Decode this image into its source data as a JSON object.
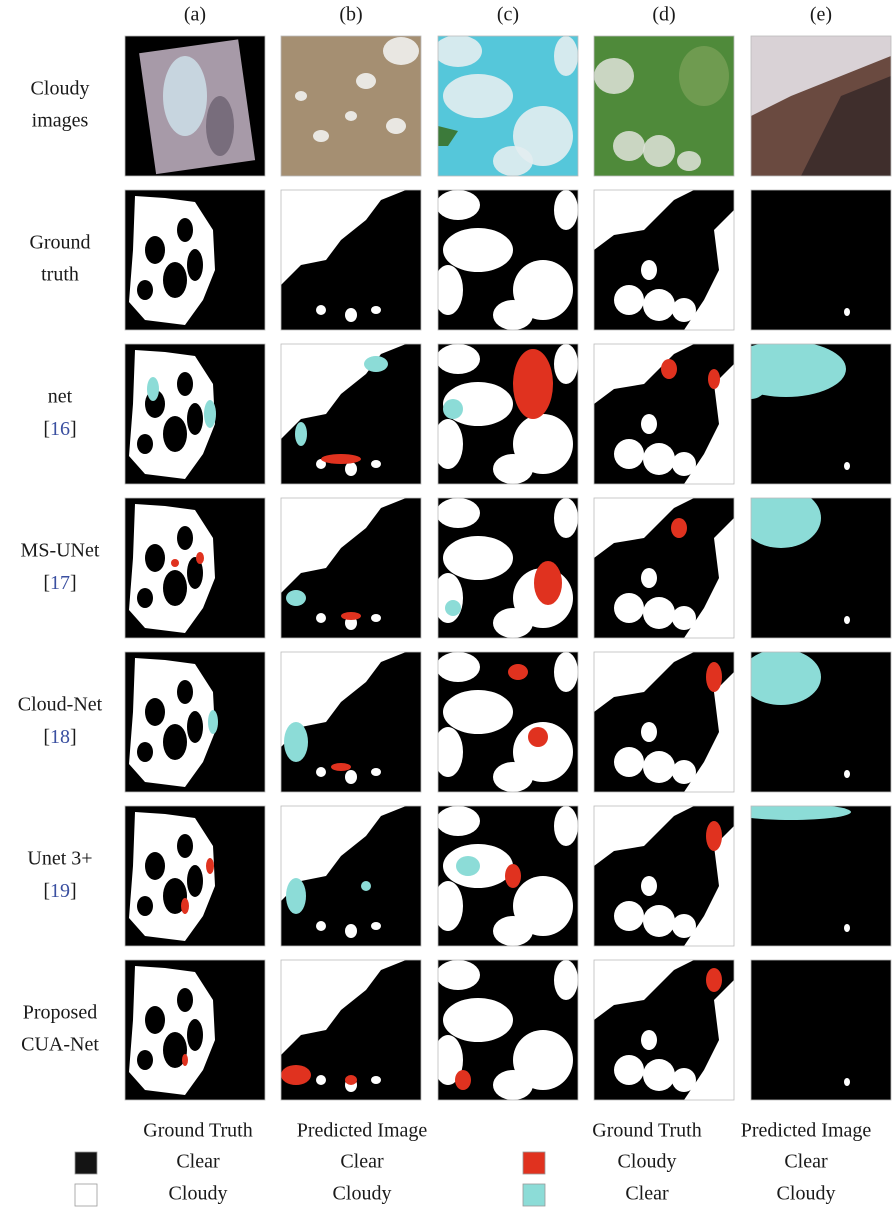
{
  "columns": [
    "(a)",
    "(b)",
    "(c)",
    "(d)",
    "(e)"
  ],
  "rows": [
    {
      "lines": [
        "Cloudy",
        "images"
      ]
    },
    {
      "lines": [
        "Ground",
        "truth"
      ]
    },
    {
      "lines": [
        "net"
      ],
      "citation": [
        "[",
        "16",
        "]"
      ]
    },
    {
      "lines": [
        "MS-UNet"
      ],
      "citation": [
        "[",
        "17",
        "]"
      ]
    },
    {
      "lines": [
        "Cloud-Net"
      ],
      "citation": [
        "[",
        "18",
        "]"
      ]
    },
    {
      "lines": [
        "Unet 3+"
      ],
      "citation": [
        "[",
        "19",
        "]"
      ]
    },
    {
      "lines": [
        "Proposed",
        "CUA-Net"
      ]
    }
  ],
  "legend": {
    "headers": [
      "Ground Truth",
      "Predicted Image",
      "Ground Truth",
      "Predicted Image"
    ],
    "entries": [
      {
        "color": "#141414",
        "ground_truth": "Clear",
        "predicted": "Clear"
      },
      {
        "color": "#ffffff",
        "ground_truth": "Cloudy",
        "predicted": "Cloudy"
      },
      {
        "color": "#e0321f",
        "ground_truth": "Cloudy",
        "predicted": "Clear"
      },
      {
        "color": "#8cdcd7",
        "ground_truth": "Clear",
        "predicted": "Cloudy"
      }
    ]
  }
}
